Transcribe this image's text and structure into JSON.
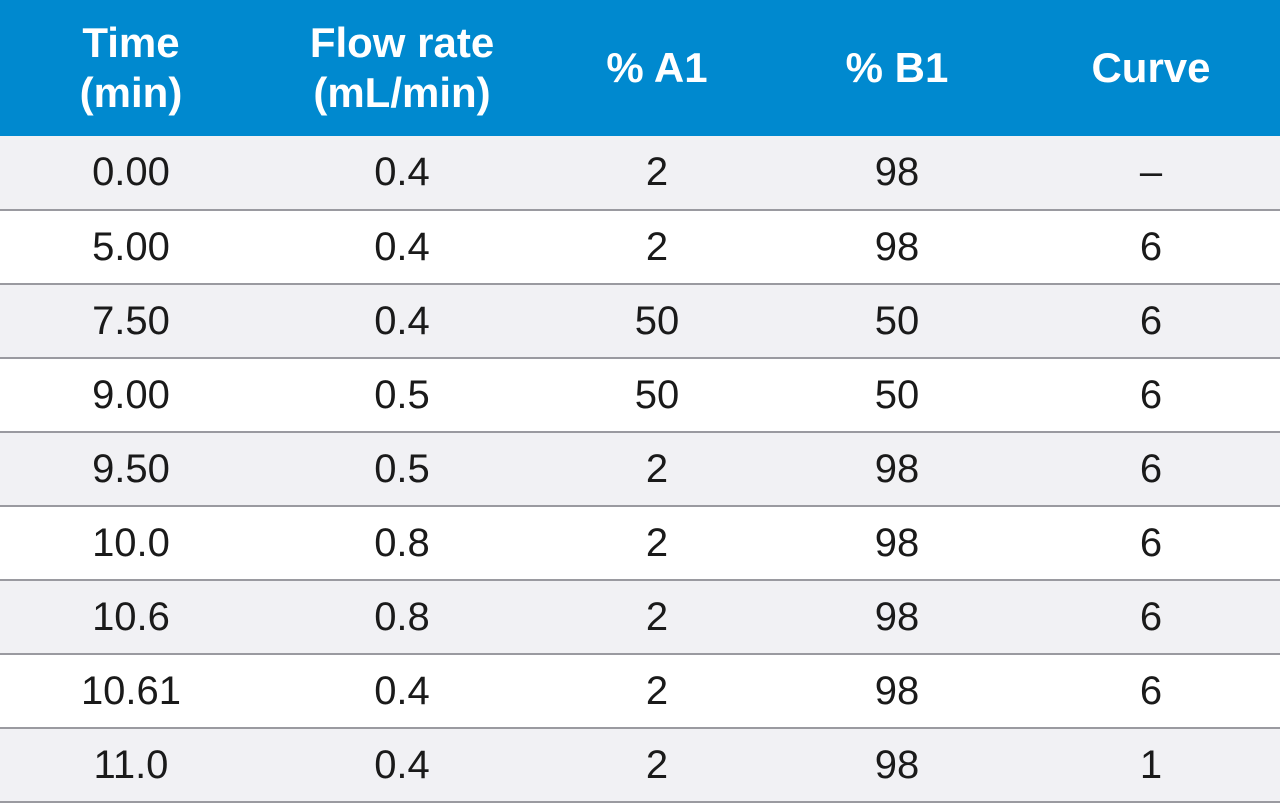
{
  "table": {
    "headers": [
      {
        "line1": "Time",
        "line2": "(min)"
      },
      {
        "line1": "Flow rate",
        "line2": "(mL/min)"
      },
      {
        "line1": "% A1",
        "line2": ""
      },
      {
        "line1": "% B1",
        "line2": ""
      },
      {
        "line1": "Curve",
        "line2": ""
      }
    ],
    "rows": [
      [
        "0.00",
        "0.4",
        "2",
        "98",
        "–"
      ],
      [
        "5.00",
        "0.4",
        "2",
        "98",
        "6"
      ],
      [
        "7.50",
        "0.4",
        "50",
        "50",
        "6"
      ],
      [
        "9.00",
        "0.5",
        "50",
        "50",
        "6"
      ],
      [
        "9.50",
        "0.5",
        "2",
        "98",
        "6"
      ],
      [
        "10.0",
        "0.8",
        "2",
        "98",
        "6"
      ],
      [
        "10.6",
        "0.8",
        "2",
        "98",
        "6"
      ],
      [
        "10.61",
        "0.4",
        "2",
        "98",
        "6"
      ],
      [
        "11.0",
        "0.4",
        "2",
        "98",
        "1"
      ]
    ]
  },
  "colors": {
    "header_bg": "#0089cf",
    "header_text": "#ffffff",
    "row_alt_bg": "#f1f1f4",
    "row_bg": "#ffffff",
    "rule": "#9a9aa0"
  }
}
